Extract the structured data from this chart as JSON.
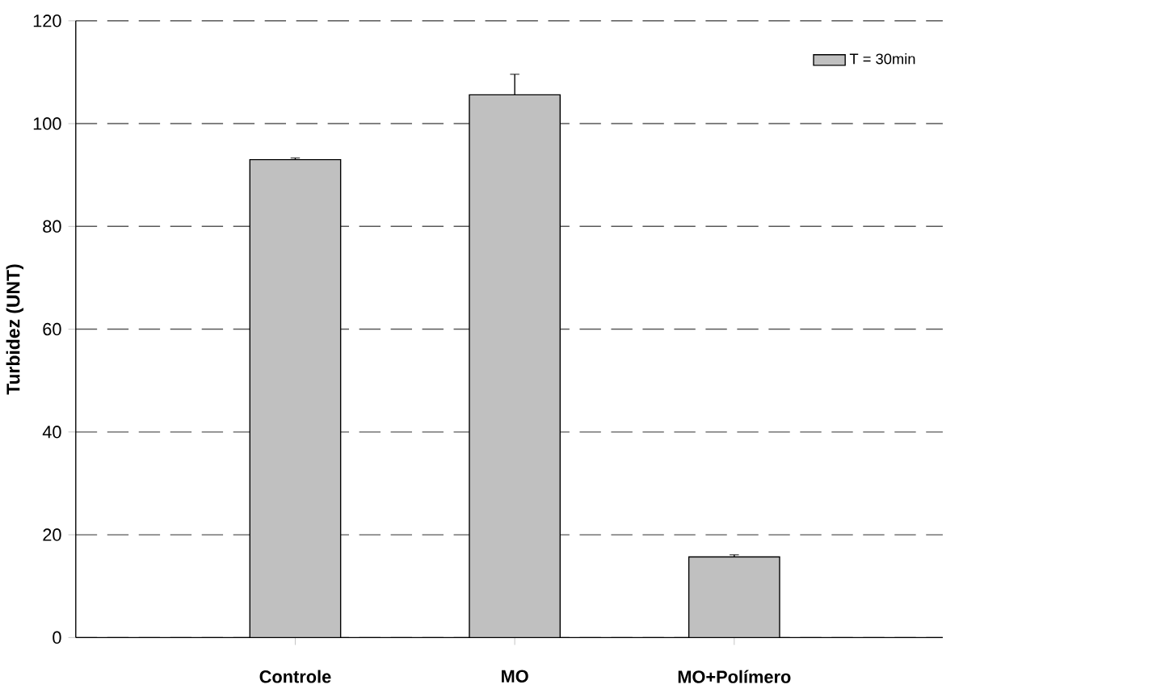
{
  "chart_data": {
    "type": "bar",
    "ylabel": "Turbidez (UNT)",
    "categories": [
      "Controle",
      "MO",
      "MO+Polímero"
    ],
    "series": [
      {
        "name": "T = 30min",
        "color": "#c0c0c0",
        "values": [
          93.0,
          105.6,
          15.7
        ],
        "errors": [
          0.3,
          4.0,
          0.4
        ]
      }
    ],
    "ylim": [
      0,
      120
    ],
    "yticks": [
      0,
      20,
      40,
      60,
      80,
      100,
      120
    ],
    "grid": "y",
    "legend": "top right"
  }
}
